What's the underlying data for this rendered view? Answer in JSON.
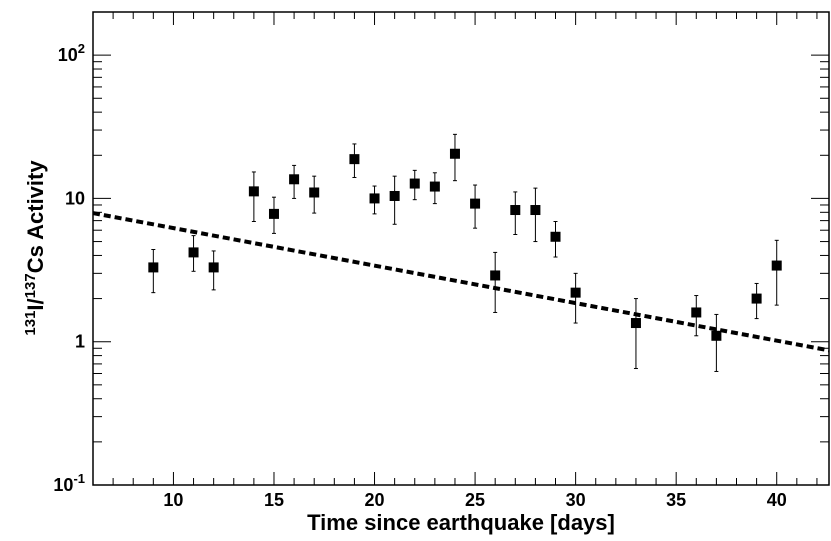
{
  "chart_data": {
    "type": "scatter",
    "title": "",
    "xlabel": "Time since earthquake [days]",
    "ylabel": {
      "iso1_mass": "131",
      "iso1_symbol": "I",
      "separator": "/",
      "iso2_mass": "137",
      "iso2_symbol": "Cs",
      "suffix": " Activity"
    },
    "xlim": [
      6,
      42.6
    ],
    "ylim": [
      0.1,
      200
    ],
    "yscale": "log",
    "grid": false,
    "x_ticks": [
      10,
      15,
      20,
      25,
      30,
      35,
      40
    ],
    "x_tick_labels": [
      "10",
      "15",
      "20",
      "25",
      "30",
      "35",
      "40"
    ],
    "y_ticks": [
      {
        "value": 0.1,
        "base": "10",
        "exp": "-1"
      },
      {
        "value": 1,
        "base": "1",
        "exp": ""
      },
      {
        "value": 10,
        "base": "10",
        "exp": ""
      },
      {
        "value": 100,
        "base": "10",
        "exp": "2"
      }
    ],
    "series": [
      {
        "style": "square-markers-with-error-bars",
        "color": "#000000",
        "points": [
          {
            "x": 9,
            "y": 3.3,
            "ylo": 2.2,
            "yhi": 4.4
          },
          {
            "x": 11,
            "y": 4.2,
            "ylo": 3.1,
            "yhi": 5.5
          },
          {
            "x": 12,
            "y": 3.3,
            "ylo": 2.3,
            "yhi": 4.3
          },
          {
            "x": 14,
            "y": 11.2,
            "ylo": 6.9,
            "yhi": 15.3
          },
          {
            "x": 15,
            "y": 7.8,
            "ylo": 5.7,
            "yhi": 10.2
          },
          {
            "x": 16,
            "y": 13.6,
            "ylo": 10.0,
            "yhi": 17.0
          },
          {
            "x": 17,
            "y": 11.0,
            "ylo": 7.9,
            "yhi": 14.3
          },
          {
            "x": 19,
            "y": 18.8,
            "ylo": 14.0,
            "yhi": 24.0
          },
          {
            "x": 20,
            "y": 10.0,
            "ylo": 7.8,
            "yhi": 12.2
          },
          {
            "x": 21,
            "y": 10.4,
            "ylo": 6.6,
            "yhi": 14.3
          },
          {
            "x": 22,
            "y": 12.7,
            "ylo": 9.8,
            "yhi": 15.7
          },
          {
            "x": 23,
            "y": 12.1,
            "ylo": 9.2,
            "yhi": 15.1
          },
          {
            "x": 24,
            "y": 20.5,
            "ylo": 13.3,
            "yhi": 28.0
          },
          {
            "x": 25,
            "y": 9.2,
            "ylo": 6.2,
            "yhi": 12.4
          },
          {
            "x": 26,
            "y": 2.9,
            "ylo": 1.6,
            "yhi": 4.2
          },
          {
            "x": 27,
            "y": 8.3,
            "ylo": 5.6,
            "yhi": 11.1
          },
          {
            "x": 28,
            "y": 8.3,
            "ylo": 5.0,
            "yhi": 11.8
          },
          {
            "x": 29,
            "y": 5.4,
            "ylo": 3.9,
            "yhi": 6.9
          },
          {
            "x": 30,
            "y": 2.2,
            "ylo": 1.35,
            "yhi": 3.0
          },
          {
            "x": 33,
            "y": 1.35,
            "ylo": 0.65,
            "yhi": 2.0
          },
          {
            "x": 36,
            "y": 1.6,
            "ylo": 1.1,
            "yhi": 2.1
          },
          {
            "x": 37,
            "y": 1.1,
            "ylo": 0.62,
            "yhi": 1.55
          },
          {
            "x": 39,
            "y": 2.0,
            "ylo": 1.45,
            "yhi": 2.55
          },
          {
            "x": 40,
            "y": 3.4,
            "ylo": 1.8,
            "yhi": 5.1
          }
        ]
      },
      {
        "style": "dashed-line",
        "color": "#000000",
        "points": [
          {
            "x": 6,
            "y": 7.9
          },
          {
            "x": 42.6,
            "y": 0.87
          }
        ]
      }
    ]
  }
}
